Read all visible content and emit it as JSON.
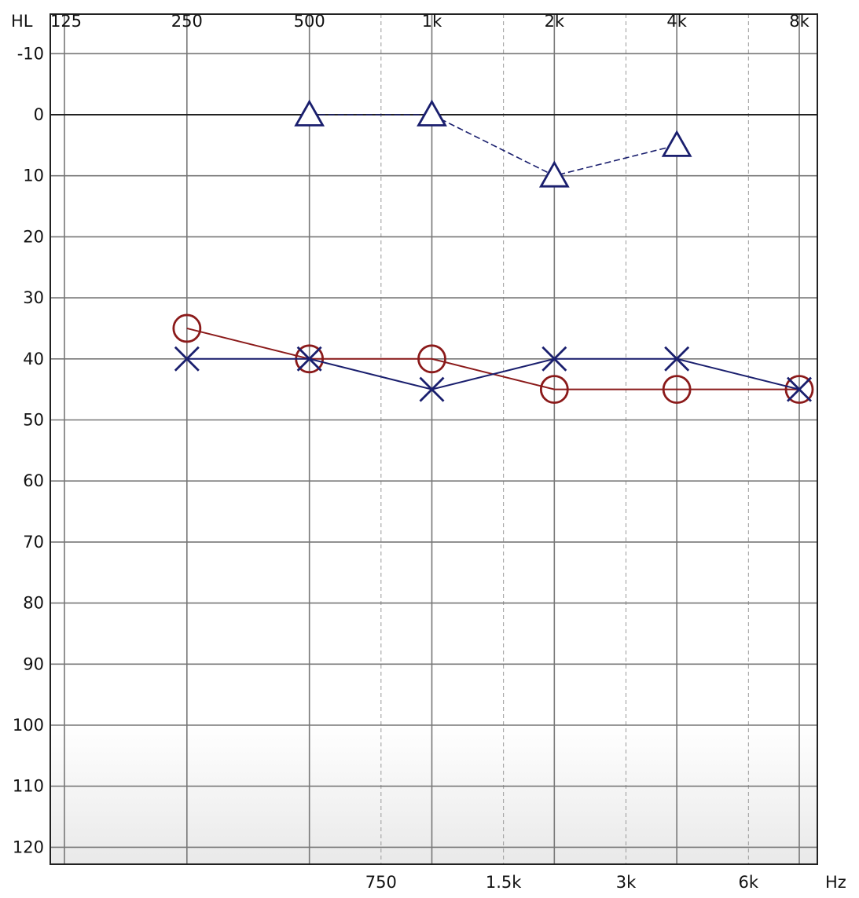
{
  "chart_data": {
    "type": "line",
    "y_unit_label": "HL",
    "x_unit_label": "Hz",
    "x_scale": "log2",
    "x_range": [
      125,
      8000
    ],
    "y_range": [
      -10,
      120
    ],
    "y_inverted": true,
    "y_ticks": [
      -10,
      0,
      10,
      20,
      30,
      40,
      50,
      60,
      70,
      80,
      90,
      100,
      110,
      120
    ],
    "y_tick_labels": [
      "-10",
      "0",
      "10",
      "20",
      "30",
      "40",
      "50",
      "60",
      "70",
      "80",
      "90",
      "100",
      "110",
      "120"
    ],
    "x_major_ticks": [
      125,
      250,
      500,
      1000,
      2000,
      4000,
      8000
    ],
    "x_major_labels": [
      "125",
      "250",
      "500",
      "1k",
      "2k",
      "4k",
      "8k"
    ],
    "x_minor_ticks": [
      750,
      1500,
      3000,
      6000
    ],
    "x_minor_labels": [
      "750",
      "1.5k",
      "3k",
      "6k"
    ],
    "grid": true,
    "shaded_region_from": 100,
    "series": [
      {
        "marker": "triangle",
        "color": "#1a1f6e",
        "line_style": "dashed",
        "x": [
          500,
          1000,
          2000,
          4000
        ],
        "y": [
          0,
          0,
          10,
          5
        ]
      },
      {
        "marker": "circle",
        "color": "#8b1a1a",
        "line_style": "solid",
        "x": [
          250,
          500,
          1000,
          2000,
          4000,
          8000
        ],
        "y": [
          35,
          40,
          40,
          45,
          45,
          45
        ]
      },
      {
        "marker": "cross",
        "color": "#1a1f6e",
        "line_style": "solid",
        "x": [
          250,
          500,
          1000,
          2000,
          4000,
          8000
        ],
        "y": [
          40,
          40,
          45,
          40,
          40,
          45
        ]
      }
    ]
  }
}
